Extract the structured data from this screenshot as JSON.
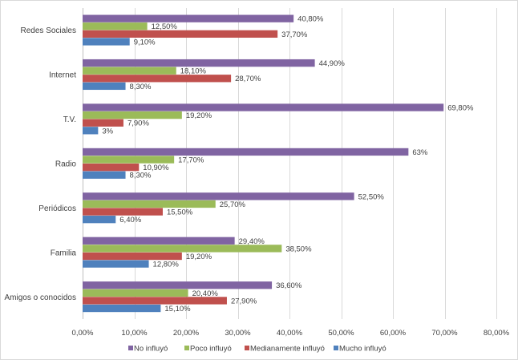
{
  "chart_data": {
    "type": "bar",
    "orientation": "horizontal",
    "title": "",
    "xlabel": "",
    "ylabel": "",
    "xlim": [
      0,
      80
    ],
    "grid": true,
    "legend_position": "bottom",
    "categories": [
      "Redes Sociales",
      "Internet",
      "T.V.",
      "Radio",
      "Periódicos",
      "Familia",
      "Amigos o conocidos"
    ],
    "x_ticks": [
      0,
      10,
      20,
      30,
      40,
      50,
      60,
      70,
      80
    ],
    "x_tick_labels": [
      "0,00%",
      "10,00%",
      "20,00%",
      "30,00%",
      "40,00%",
      "50,00%",
      "60,00%",
      "70,00%",
      "80,00%"
    ],
    "series": [
      {
        "name": "No influyó",
        "color": "#8064A2",
        "values": [
          40.8,
          44.9,
          69.8,
          63,
          52.5,
          29.4,
          36.6
        ],
        "labels": [
          "40,80%",
          "44,90%",
          "69,80%",
          "63%",
          "52,50%",
          "29,40%",
          "36,60%"
        ]
      },
      {
        "name": "Poco influyó",
        "color": "#9BBB59",
        "values": [
          12.5,
          18.1,
          19.2,
          17.7,
          25.7,
          38.5,
          20.4
        ],
        "labels": [
          "12,50%",
          "18,10%",
          "19,20%",
          "17,70%",
          "25,70%",
          "38,50%",
          "20,40%"
        ]
      },
      {
        "name": "Medianamente influyó",
        "color": "#C0504D",
        "values": [
          37.7,
          28.7,
          7.9,
          10.9,
          15.5,
          19.2,
          27.9
        ],
        "labels": [
          "37,70%",
          "28,70%",
          "7,90%",
          "10,90%",
          "15,50%",
          "19,20%",
          "27,90%"
        ]
      },
      {
        "name": "Mucho influyó",
        "color": "#4F81BD",
        "values": [
          9.1,
          8.3,
          3,
          8.3,
          6.4,
          12.8,
          15.1
        ],
        "labels": [
          "9,10%",
          "8,30%",
          "3%",
          "8,30%",
          "6,40%",
          "12,80%",
          "15,10%"
        ]
      }
    ]
  }
}
